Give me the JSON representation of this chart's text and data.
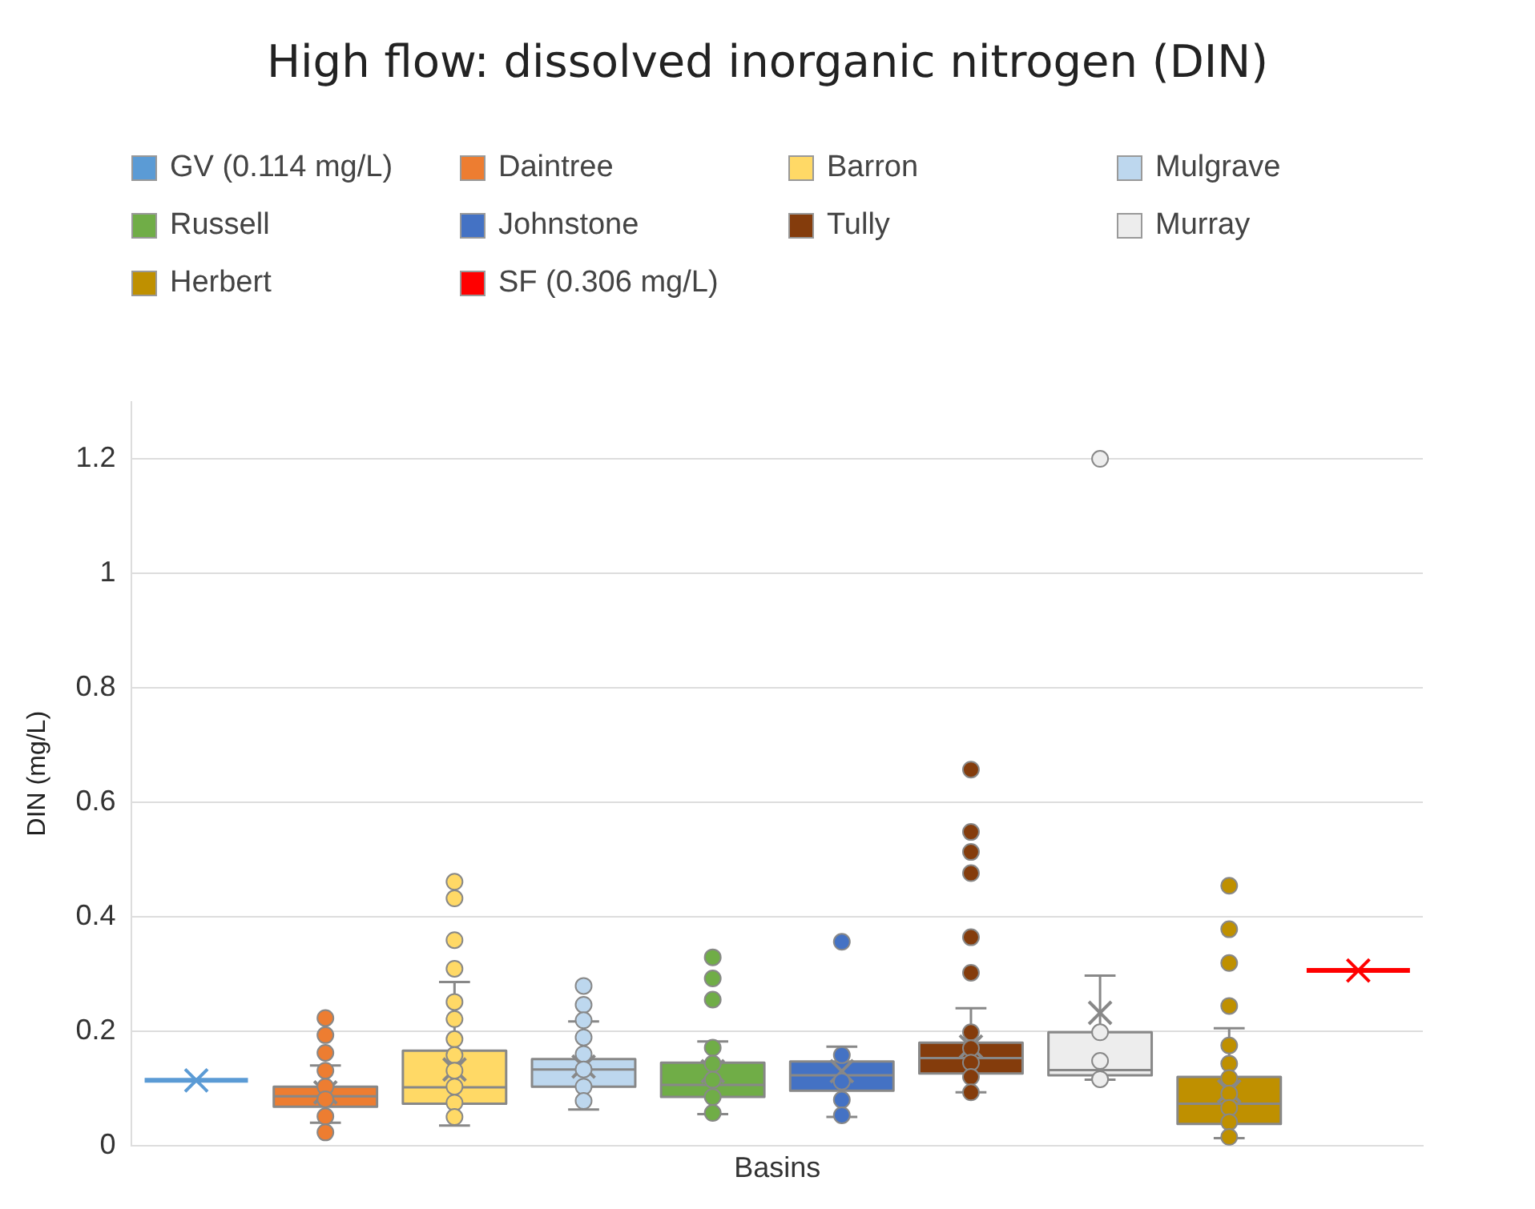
{
  "chart_data": {
    "type": "box",
    "title": "High flow: dissolved inorganic nitrogen (DIN)",
    "xlabel": "Basins",
    "ylabel": "DIN (mg/L)",
    "categories": [
      null
    ],
    "ylim": [
      0,
      1.3
    ],
    "yticks": [
      0,
      0.2,
      0.4,
      0.6,
      0.8,
      1,
      1.2
    ],
    "grid": "y",
    "legend": "top",
    "tick_labels": "y",
    "series": [
      {
        "name": "GV (0.114 mg/L)",
        "color": "#5b9bd5",
        "boxes": [
          {
            "low": 0.114,
            "q1": 0.114,
            "median": 0.114,
            "q3": 0.114,
            "high": 0.114,
            "mean": 0.114
          }
        ]
      },
      {
        "name": "Daintree",
        "color": "#ed7d31",
        "boxes": [
          {
            "low": 0.04,
            "q1": 0.068,
            "median": 0.086,
            "q3": 0.103,
            "high": 0.14,
            "mean": 0.093,
            "outliers": [
              0.223,
              0.193,
              0.162,
              0.131,
              0.103,
              0.081,
              0.051,
              0.023
            ]
          }
        ]
      },
      {
        "name": "Barron",
        "color": "#ffd966",
        "boxes": [
          {
            "low": 0.035,
            "q1": 0.073,
            "median": 0.102,
            "q3": 0.166,
            "high": 0.286,
            "mean": 0.133,
            "outliers": [
              0.461,
              0.432,
              0.359,
              0.309,
              0.251,
              0.221,
              0.186,
              0.158,
              0.131,
              0.103,
              0.075,
              0.05
            ]
          }
        ]
      },
      {
        "name": "Mulgrave",
        "color": "#bdd7ee",
        "boxes": [
          {
            "low": 0.063,
            "q1": 0.103,
            "median": 0.133,
            "q3": 0.151,
            "high": 0.217,
            "mean": 0.138,
            "outliers": [
              0.279,
              0.246,
              0.219,
              0.189,
              0.16,
              0.133,
              0.103,
              0.078
            ]
          }
        ]
      },
      {
        "name": "Russell",
        "color": "#70ad47",
        "boxes": [
          {
            "low": 0.055,
            "q1": 0.085,
            "median": 0.106,
            "q3": 0.145,
            "high": 0.182,
            "mean": 0.13,
            "outliers": [
              0.329,
              0.292,
              0.255,
              0.171,
              0.143,
              0.115,
              0.085,
              0.057
            ]
          }
        ]
      },
      {
        "name": "Johnstone",
        "color": "#4472c4",
        "boxes": [
          {
            "low": 0.05,
            "q1": 0.096,
            "median": 0.123,
            "q3": 0.147,
            "high": 0.173,
            "mean": 0.13,
            "outliers": [
              0.356,
              0.158,
              0.112,
              0.08,
              0.053
            ]
          }
        ]
      },
      {
        "name": "Tully",
        "color": "#843c0c",
        "boxes": [
          {
            "low": 0.093,
            "q1": 0.126,
            "median": 0.153,
            "q3": 0.18,
            "high": 0.24,
            "mean": 0.173,
            "outliers": [
              0.657,
              0.548,
              0.513,
              0.476,
              0.364,
              0.302,
              0.198,
              0.17,
              0.145,
              0.12,
              0.093
            ]
          }
        ]
      },
      {
        "name": "Murray",
        "color": "#ededed",
        "boxes": [
          {
            "low": 0.115,
            "q1": 0.123,
            "median": 0.132,
            "q3": 0.198,
            "high": 0.297,
            "mean": 0.232,
            "outliers": [
              1.2,
              0.198,
              0.148,
              0.116
            ]
          }
        ]
      },
      {
        "name": "Herbert",
        "color": "#bf9000",
        "boxes": [
          {
            "low": 0.013,
            "q1": 0.038,
            "median": 0.073,
            "q3": 0.12,
            "high": 0.205,
            "mean": 0.095,
            "outliers": [
              0.454,
              0.378,
              0.319,
              0.244,
              0.175,
              0.143,
              0.118,
              0.091,
              0.066,
              0.041,
              0.015
            ]
          }
        ]
      },
      {
        "name": "SF (0.306 mg/L)",
        "color": "#ff0000",
        "boxes": [
          {
            "low": 0.306,
            "q1": 0.306,
            "median": 0.306,
            "q3": 0.306,
            "high": 0.306,
            "mean": 0.306
          }
        ]
      }
    ]
  }
}
